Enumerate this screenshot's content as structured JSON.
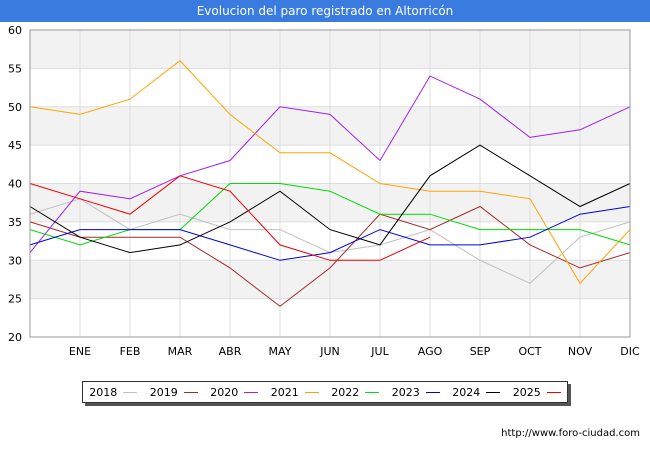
{
  "header": {
    "title": "Evolucion del paro registrado en Altorricón"
  },
  "footer": {
    "url": "http://www.foro-ciudad.com"
  },
  "chart_data": {
    "type": "line",
    "title": "Evolucion del paro registrado en Altorricón",
    "xlabel": "",
    "ylabel": "",
    "categories": [
      "",
      "ENE",
      "FEB",
      "MAR",
      "ABR",
      "MAY",
      "JUN",
      "JUL",
      "AGO",
      "SEP",
      "OCT",
      "NOV",
      "DIC"
    ],
    "yticks": [
      20,
      25,
      30,
      35,
      40,
      45,
      50,
      55,
      60
    ],
    "ylim": [
      20,
      60
    ],
    "grid": true,
    "legend_position": "bottom",
    "series": [
      {
        "name": "2018",
        "color": "#c0c0c0",
        "values": [
          36,
          38,
          34,
          36,
          34,
          34,
          31,
          32,
          34,
          30,
          27,
          33,
          35
        ]
      },
      {
        "name": "2019",
        "color": "#a52a2a",
        "values": [
          35,
          33,
          33,
          33,
          29,
          24,
          29,
          36,
          34,
          37,
          32,
          29,
          31
        ]
      },
      {
        "name": "2020",
        "color": "#a020f0",
        "values": [
          31,
          39,
          38,
          41,
          43,
          50,
          49,
          43,
          54,
          51,
          46,
          47,
          50
        ]
      },
      {
        "name": "2021",
        "color": "#ffa500",
        "values": [
          50,
          49,
          51,
          56,
          49,
          44,
          44,
          40,
          39,
          39,
          38,
          27,
          34
        ]
      },
      {
        "name": "2022",
        "color": "#00dd00",
        "values": [
          34,
          32,
          34,
          34,
          40,
          40,
          39,
          36,
          36,
          34,
          34,
          34,
          32
        ]
      },
      {
        "name": "2023",
        "color": "#0000dd",
        "values": [
          32,
          34,
          34,
          34,
          32,
          30,
          31,
          34,
          32,
          32,
          33,
          36,
          37
        ]
      },
      {
        "name": "2024",
        "color": "#000000",
        "values": [
          37,
          33,
          31,
          32,
          35,
          39,
          34,
          32,
          41,
          45,
          41,
          37,
          40
        ]
      },
      {
        "name": "2025",
        "color": "#ee0000",
        "values": [
          40,
          38,
          36,
          41,
          39,
          32,
          30,
          30,
          33,
          null,
          null,
          null,
          null
        ]
      }
    ]
  }
}
